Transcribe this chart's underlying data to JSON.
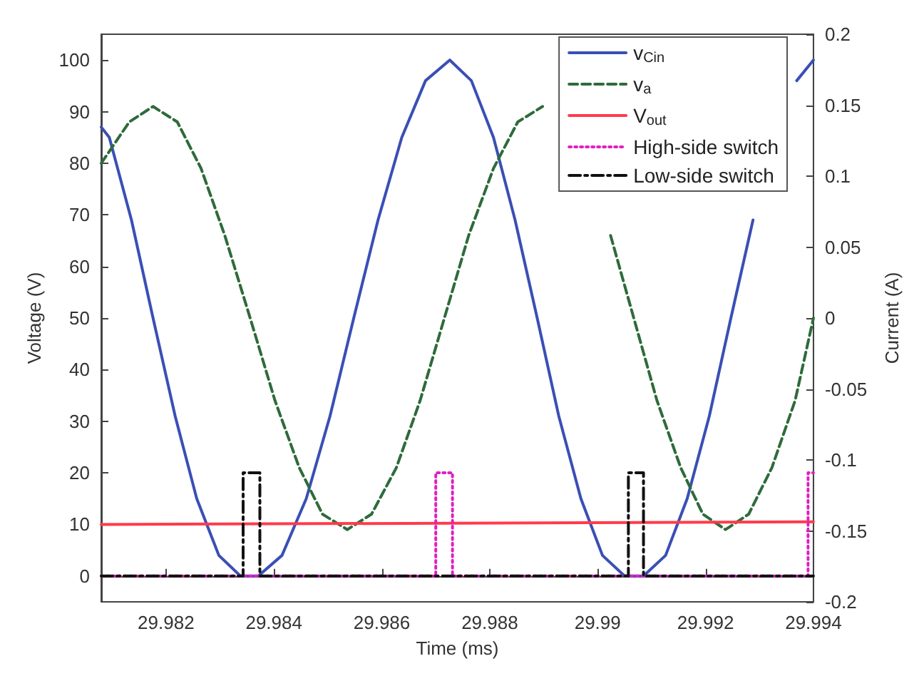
{
  "chart_data": {
    "type": "line",
    "xlabel": "Time (ms)",
    "ylabel": "Voltage (V)",
    "y2label": "Current (A)",
    "xlim": [
      29.9808,
      29.994
    ],
    "xticks": [
      29.982,
      29.984,
      29.986,
      29.988,
      29.99,
      29.992,
      29.994
    ],
    "ylim": [
      -5,
      105
    ],
    "yticks": [
      0,
      10,
      20,
      30,
      40,
      50,
      60,
      70,
      80,
      90,
      100
    ],
    "y2lim": [
      -0.2,
      0.2
    ],
    "y2ticks": [
      -0.2,
      -0.15,
      -0.1,
      -0.05,
      0,
      0.05,
      0.1,
      0.15,
      0.2
    ],
    "legend": "top right",
    "marker": "none",
    "series": [
      {
        "name": "v$_{Cin}$",
        "color": "#3a4fb5",
        "line_style": "solid",
        "x": [
          29.9808,
          29.98095,
          29.98136,
          29.98176,
          29.98217,
          29.98257,
          29.98298,
          29.98338,
          29.98371,
          29.98415,
          29.9846,
          29.98504,
          29.98548,
          29.98593,
          29.98637,
          29.98681,
          29.98726,
          29.98766,
          29.98807,
          29.98847,
          29.98888,
          29.98928,
          29.98969,
          29.99009,
          29.9905,
          29.99085,
          29.99126,
          29.99166,
          29.99207,
          29.99247,
          29.99288,
          29.99328,
          29.99369,
          29.994
        ],
        "values": [
          87,
          85,
          69,
          50,
          31,
          15,
          4,
          0,
          0,
          4,
          15,
          31,
          50,
          69,
          85,
          96,
          100,
          96,
          85,
          69,
          50,
          31,
          15,
          4,
          0,
          0,
          4,
          15,
          31,
          50,
          69,
          null,
          96,
          100
        ]
      },
      {
        "name": "v$_{a}$",
        "color": "#2e6b3a",
        "line_style": "dashed",
        "x": [
          29.9808,
          29.98132,
          29.98176,
          29.98221,
          29.98265,
          29.98309,
          29.98356,
          29.98402,
          29.98447,
          29.9849,
          29.98536,
          29.98581,
          29.98627,
          29.98671,
          29.98716,
          29.98761,
          29.98807,
          29.98852,
          29.98898,
          29.9894,
          29.98981,
          29.99024,
          29.99067,
          29.9911,
          29.99154,
          29.99195,
          29.99237,
          29.9928,
          29.99323,
          29.99366,
          29.994
        ],
        "values": [
          80,
          88,
          91,
          88,
          79,
          66,
          50,
          34,
          21,
          12,
          9,
          12,
          21,
          34,
          50,
          66,
          79,
          88,
          91,
          null,
          null,
          66,
          50,
          34,
          21,
          12,
          9,
          12,
          21,
          34,
          50
        ]
      },
      {
        "name": "V$_{out}$",
        "color": "#ff3b4a",
        "line_style": "solid",
        "x": [
          29.9808,
          29.994
        ],
        "values": [
          10,
          10.5
        ]
      },
      {
        "name": "High-side switch",
        "color": "#e020c0",
        "line_style": "dotted",
        "x": [
          29.9808,
          29.987,
          29.987,
          29.98731,
          29.98731,
          29.9939,
          29.9939,
          29.994
        ],
        "values": [
          0,
          0,
          20,
          20,
          0,
          0,
          20,
          20
        ]
      },
      {
        "name": "Low-side switch",
        "color": "#111111",
        "line_style": "dashdot",
        "x": [
          29.9808,
          29.98343,
          29.98343,
          29.98374,
          29.98374,
          29.99057,
          29.99057,
          29.99085,
          29.99085,
          29.994
        ],
        "values": [
          0,
          0,
          20,
          20,
          0,
          0,
          20,
          20,
          0,
          0
        ]
      }
    ]
  }
}
